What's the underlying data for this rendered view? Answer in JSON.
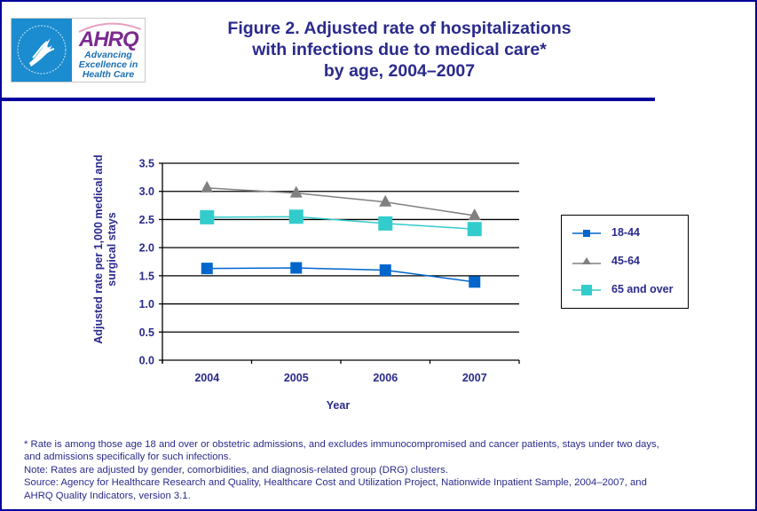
{
  "header": {
    "logo_hhs_alt": "Department of Health & Human Services USA",
    "logo_ahrq_word": "AHRQ",
    "logo_ahrq_tagline": [
      "Advancing",
      "Excellence in",
      "Health Care"
    ],
    "title_lines": [
      "Figure 2. Adjusted rate of hospitalizations",
      "with infections due to medical care*",
      "by age, 2004–2007"
    ]
  },
  "colors": {
    "frame": "#00009c",
    "text": "#2a2a8c",
    "series_18_44": "#0066cc",
    "series_45_64": "#808080",
    "series_65_over": "#33cccc"
  },
  "chart_data": {
    "type": "line",
    "title": "Figure 2. Adjusted rate of hospitalizations with infections due to medical care* by age, 2004–2007",
    "xlabel": "Year",
    "ylabel": "Adjusted rate per 1,000 medical and surgical stays",
    "ylabel_lines": [
      "Adjusted rate per 1,000 medical and",
      "surgical stays"
    ],
    "categories": [
      "2004",
      "2005",
      "2006",
      "2007"
    ],
    "ylim": [
      0,
      3.5
    ],
    "yticks": [
      "0.0",
      "0.5",
      "1.0",
      "1.5",
      "2.0",
      "2.5",
      "3.0",
      "3.5"
    ],
    "grid": true,
    "legend_position": "right",
    "series": [
      {
        "name": "18-44",
        "marker": "square",
        "color": "#0066cc",
        "values": [
          1.63,
          1.64,
          1.6,
          1.39
        ]
      },
      {
        "name": "45-64",
        "marker": "triangle",
        "color": "#808080",
        "values": [
          3.06,
          2.97,
          2.81,
          2.57
        ]
      },
      {
        "name": "65 and over",
        "marker": "square-large",
        "color": "#33cccc",
        "values": [
          2.54,
          2.55,
          2.43,
          2.33
        ]
      }
    ]
  },
  "notes": [
    "* Rate is among those age 18 and over or obstetric admissions, and excludes immunocompromised and cancer patients, stays under two days,",
    "and admissions specifically for such infections.",
    "Note: Rates are adjusted by gender, comorbidities, and diagnosis-related group (DRG) clusters.",
    "Source: Agency for Healthcare Research and Quality, Healthcare Cost and Utilization Project, Nationwide Inpatient Sample, 2004–2007, and",
    "AHRQ Quality Indicators, version 3.1."
  ]
}
